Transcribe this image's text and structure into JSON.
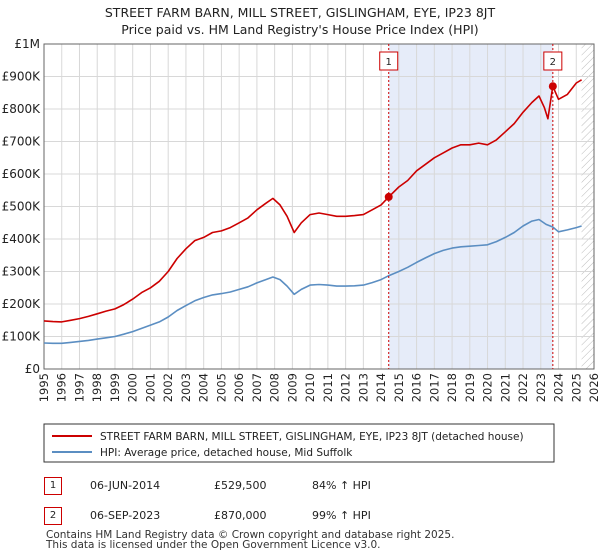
{
  "chart_data": {
    "type": "line",
    "title": "STREET FARM BARN, MILL STREET, GISLINGHAM, EYE, IP23 8JT",
    "subtitle": "Price paid vs. HM Land Registry's House Price Index (HPI)",
    "ylim": [
      0,
      1000000
    ],
    "yticks": [
      {
        "value": 0,
        "label": "£0"
      },
      {
        "value": 100000,
        "label": "£100K"
      },
      {
        "value": 200000,
        "label": "£200K"
      },
      {
        "value": 300000,
        "label": "£300K"
      },
      {
        "value": 400000,
        "label": "£400K"
      },
      {
        "value": 500000,
        "label": "£500K"
      },
      {
        "value": 600000,
        "label": "£600K"
      },
      {
        "value": 700000,
        "label": "£700K"
      },
      {
        "value": 800000,
        "label": "£800K"
      },
      {
        "value": 900000,
        "label": "£900K"
      },
      {
        "value": 1000000,
        "label": "£1M"
      }
    ],
    "xlim": [
      1995,
      2026
    ],
    "xticks": [
      "1995",
      "1996",
      "1997",
      "1998",
      "1999",
      "2000",
      "2001",
      "2002",
      "2003",
      "2004",
      "2005",
      "2006",
      "2007",
      "2008",
      "2009",
      "2010",
      "2011",
      "2012",
      "2013",
      "2014",
      "2015",
      "2016",
      "2017",
      "2018",
      "2019",
      "2020",
      "2021",
      "2022",
      "2023",
      "2024",
      "2025",
      "2026"
    ],
    "series": [
      {
        "name": "STREET FARM BARN, MILL STREET, GISLINGHAM, EYE, IP23 8JT (detached house)",
        "color": "#cc0000",
        "points": [
          [
            1995.0,
            148000
          ],
          [
            1995.5,
            146000
          ],
          [
            1996.0,
            145000
          ],
          [
            1996.5,
            150000
          ],
          [
            1997.0,
            155000
          ],
          [
            1997.5,
            162000
          ],
          [
            1998.0,
            170000
          ],
          [
            1998.5,
            178000
          ],
          [
            1999.0,
            185000
          ],
          [
            1999.5,
            198000
          ],
          [
            2000.0,
            215000
          ],
          [
            2000.5,
            235000
          ],
          [
            2001.0,
            250000
          ],
          [
            2001.5,
            270000
          ],
          [
            2002.0,
            300000
          ],
          [
            2002.5,
            340000
          ],
          [
            2003.0,
            370000
          ],
          [
            2003.5,
            395000
          ],
          [
            2004.0,
            405000
          ],
          [
            2004.5,
            420000
          ],
          [
            2005.0,
            425000
          ],
          [
            2005.5,
            435000
          ],
          [
            2006.0,
            450000
          ],
          [
            2006.5,
            465000
          ],
          [
            2007.0,
            490000
          ],
          [
            2007.5,
            510000
          ],
          [
            2007.9,
            525000
          ],
          [
            2008.3,
            505000
          ],
          [
            2008.7,
            470000
          ],
          [
            2009.1,
            420000
          ],
          [
            2009.5,
            450000
          ],
          [
            2010.0,
            475000
          ],
          [
            2010.5,
            480000
          ],
          [
            2011.0,
            475000
          ],
          [
            2011.5,
            470000
          ],
          [
            2012.0,
            470000
          ],
          [
            2012.5,
            472000
          ],
          [
            2013.0,
            475000
          ],
          [
            2013.5,
            490000
          ],
          [
            2014.0,
            505000
          ],
          [
            2014.43,
            529500
          ],
          [
            2015.0,
            560000
          ],
          [
            2015.5,
            580000
          ],
          [
            2016.0,
            610000
          ],
          [
            2016.5,
            630000
          ],
          [
            2017.0,
            650000
          ],
          [
            2017.5,
            665000
          ],
          [
            2018.0,
            680000
          ],
          [
            2018.5,
            690000
          ],
          [
            2019.0,
            690000
          ],
          [
            2019.5,
            695000
          ],
          [
            2020.0,
            690000
          ],
          [
            2020.5,
            705000
          ],
          [
            2021.0,
            730000
          ],
          [
            2021.5,
            755000
          ],
          [
            2022.0,
            790000
          ],
          [
            2022.5,
            820000
          ],
          [
            2022.9,
            840000
          ],
          [
            2023.2,
            805000
          ],
          [
            2023.4,
            770000
          ],
          [
            2023.68,
            870000
          ],
          [
            2024.0,
            830000
          ],
          [
            2024.5,
            845000
          ],
          [
            2025.0,
            880000
          ],
          [
            2025.3,
            890000
          ]
        ]
      },
      {
        "name": "HPI: Average price, detached house, Mid Suffolk",
        "color": "#5b8ec2",
        "points": [
          [
            1995.0,
            80000
          ],
          [
            1995.5,
            79000
          ],
          [
            1996.0,
            79000
          ],
          [
            1996.5,
            82000
          ],
          [
            1997.0,
            85000
          ],
          [
            1997.5,
            88000
          ],
          [
            1998.0,
            92000
          ],
          [
            1998.5,
            96000
          ],
          [
            1999.0,
            100000
          ],
          [
            1999.5,
            107000
          ],
          [
            2000.0,
            115000
          ],
          [
            2000.5,
            125000
          ],
          [
            2001.0,
            135000
          ],
          [
            2001.5,
            145000
          ],
          [
            2002.0,
            160000
          ],
          [
            2002.5,
            180000
          ],
          [
            2003.0,
            195000
          ],
          [
            2003.5,
            210000
          ],
          [
            2004.0,
            220000
          ],
          [
            2004.5,
            228000
          ],
          [
            2005.0,
            232000
          ],
          [
            2005.5,
            237000
          ],
          [
            2006.0,
            245000
          ],
          [
            2006.5,
            253000
          ],
          [
            2007.0,
            265000
          ],
          [
            2007.5,
            275000
          ],
          [
            2007.9,
            283000
          ],
          [
            2008.3,
            275000
          ],
          [
            2008.7,
            255000
          ],
          [
            2009.1,
            230000
          ],
          [
            2009.5,
            245000
          ],
          [
            2010.0,
            258000
          ],
          [
            2010.5,
            260000
          ],
          [
            2011.0,
            258000
          ],
          [
            2011.5,
            255000
          ],
          [
            2012.0,
            255000
          ],
          [
            2012.5,
            256000
          ],
          [
            2013.0,
            258000
          ],
          [
            2013.5,
            266000
          ],
          [
            2014.0,
            275000
          ],
          [
            2014.43,
            287000
          ],
          [
            2015.0,
            300000
          ],
          [
            2015.5,
            313000
          ],
          [
            2016.0,
            328000
          ],
          [
            2016.5,
            342000
          ],
          [
            2017.0,
            355000
          ],
          [
            2017.5,
            365000
          ],
          [
            2018.0,
            372000
          ],
          [
            2018.5,
            376000
          ],
          [
            2019.0,
            378000
          ],
          [
            2019.5,
            380000
          ],
          [
            2020.0,
            382000
          ],
          [
            2020.5,
            392000
          ],
          [
            2021.0,
            405000
          ],
          [
            2021.5,
            420000
          ],
          [
            2022.0,
            440000
          ],
          [
            2022.5,
            455000
          ],
          [
            2022.9,
            460000
          ],
          [
            2023.3,
            445000
          ],
          [
            2023.68,
            437000
          ],
          [
            2024.0,
            422000
          ],
          [
            2024.5,
            428000
          ],
          [
            2025.0,
            435000
          ],
          [
            2025.3,
            440000
          ]
        ]
      }
    ],
    "sales": [
      {
        "marker": "1",
        "year": 2014.43,
        "value": 529500
      },
      {
        "marker": "2",
        "year": 2023.68,
        "value": 870000
      }
    ],
    "shaded_region": {
      "from": 2014.43,
      "to": 2023.68
    },
    "hatched_region": {
      "from": 2025.3,
      "to": 2026
    }
  },
  "legend": {
    "items": [
      {
        "label": "STREET FARM BARN, MILL STREET, GISLINGHAM, EYE, IP23 8JT (detached house)",
        "color": "#cc0000"
      },
      {
        "label": "HPI: Average price, detached house, Mid Suffolk",
        "color": "#5b8ec2"
      }
    ]
  },
  "transactions": [
    {
      "marker": "1",
      "date": "06-JUN-2014",
      "price": "£529,500",
      "hpi": "84% ↑ HPI"
    },
    {
      "marker": "2",
      "date": "06-SEP-2023",
      "price": "£870,000",
      "hpi": "99% ↑ HPI"
    }
  ],
  "footer": {
    "line1": "Contains HM Land Registry data © Crown copyright and database right 2025.",
    "line2": "This data is licensed under the Open Government Licence v3.0."
  }
}
